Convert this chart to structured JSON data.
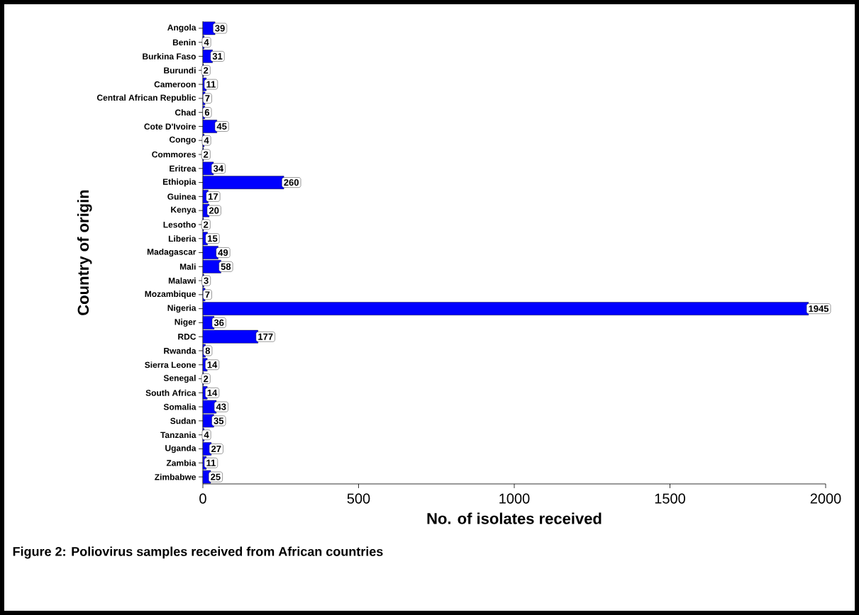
{
  "chart_data": {
    "type": "bar",
    "orientation": "horizontal",
    "xlabel": "No. of isolates received",
    "ylabel": "Country of origin",
    "annotations": [
      "Figure 2: Poliovirus samples received from African countries"
    ],
    "categories": [
      "Angola",
      "Benin",
      "Burkina Faso",
      "Burundi",
      "Cameroon",
      "Central African Republic",
      "Chad",
      "Cote D'Ivoire",
      "Congo",
      "Commores",
      "Eritrea",
      "Ethiopia",
      "Guinea",
      "Kenya",
      "Lesotho",
      "Liberia",
      "Madagascar",
      "Mali",
      "Malawi",
      "Mozambique",
      "Nigeria",
      "Niger",
      "RDC",
      "Rwanda",
      "Sierra Leone",
      "Senegal",
      "South Africa",
      "Somalia",
      "Sudan",
      "Tanzania",
      "Uganda",
      "Zambia",
      "Zimbabwe"
    ],
    "values": [
      39,
      4,
      31,
      2,
      11,
      7,
      6,
      45,
      4,
      2,
      34,
      260,
      17,
      20,
      2,
      15,
      49,
      58,
      3,
      7,
      1945,
      36,
      177,
      8,
      14,
      2,
      14,
      43,
      35,
      4,
      27,
      11,
      25
    ],
    "color": "#0000ff",
    "data_labels": true,
    "xlim": [
      0,
      2000
    ],
    "xticks": [
      0,
      500,
      1000,
      1500,
      2000
    ],
    "grid": false
  }
}
